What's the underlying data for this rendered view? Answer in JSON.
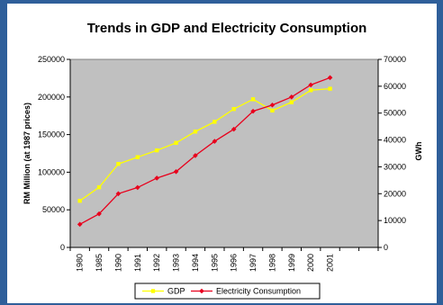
{
  "chart_data": {
    "type": "line",
    "title": "Trends in GDP and Electricity Consumption",
    "ylabel": "RM Million (at 1987 prices)",
    "y2label": "GWh",
    "categories": [
      "1980",
      "1985",
      "1990",
      "1991",
      "1992",
      "1993",
      "1994",
      "1995",
      "1996",
      "1997",
      "1998",
      "1999",
      "2000",
      "2001"
    ],
    "ylim": [
      0,
      250000
    ],
    "y2lim": [
      0,
      70000
    ],
    "y_ticks": [
      "0",
      "50000",
      "100000",
      "150000",
      "200000",
      "250000"
    ],
    "y2_ticks": [
      "0",
      "10000",
      "20000",
      "30000",
      "40000",
      "50000",
      "60000",
      "70000"
    ],
    "grid": false,
    "plot_background": "#c0c0c0",
    "legend_position": "bottom",
    "series": [
      {
        "name": "GDP",
        "axis": "left",
        "color": "#ffff00",
        "marker": "square",
        "values": [
          62000,
          80000,
          111000,
          120000,
          129000,
          139000,
          154000,
          167000,
          184000,
          197000,
          182000,
          193000,
          209000,
          211000
        ]
      },
      {
        "name": "Electricity Consumption",
        "axis": "right",
        "color": "#e8001c",
        "marker": "diamond",
        "values": [
          8600,
          12500,
          20000,
          22300,
          25800,
          28200,
          34200,
          39500,
          44000,
          50700,
          53000,
          56000,
          60500,
          63200
        ]
      }
    ]
  }
}
